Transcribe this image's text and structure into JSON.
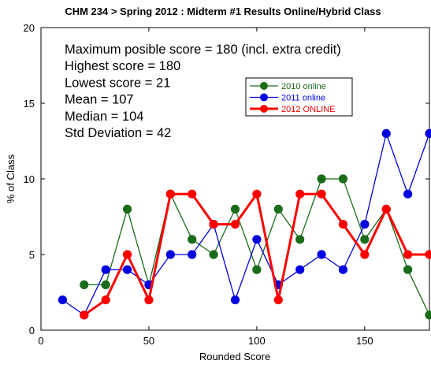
{
  "chart_data": {
    "type": "line",
    "title": "CHM 234 > Spring 2012 : Midterm #1 Results Online/Hybrid Class",
    "xlabel": "Rounded Score",
    "ylabel": "% of Class",
    "xlim": [
      0,
      180
    ],
    "ylim": [
      0,
      20
    ],
    "x_ticks": [
      0,
      50,
      100,
      150
    ],
    "y_ticks": [
      0,
      5,
      10,
      15,
      20
    ],
    "grid": false,
    "legend_position": "upper-center-right",
    "annotations": [
      "Maximum posible score = 180 (incl. extra credit)",
      "Highest score = 180",
      "Lowest score = 21",
      "Mean = 107",
      "Median = 104",
      "Std Deviation = 42"
    ],
    "series": [
      {
        "name": "2010 online",
        "color": "#1a6b1a",
        "line_width": "thin",
        "x": [
          20,
          30,
          40,
          50,
          60,
          70,
          80,
          90,
          100,
          110,
          120,
          130,
          140,
          150,
          160,
          170,
          180
        ],
        "y": [
          3,
          3,
          8,
          3,
          9,
          6,
          5,
          8,
          4,
          8,
          6,
          10,
          10,
          6,
          8,
          4,
          1
        ]
      },
      {
        "name": "2011 online",
        "color": "#0000e0",
        "line_width": "thin",
        "x": [
          10,
          20,
          30,
          40,
          50,
          60,
          70,
          80,
          90,
          100,
          110,
          120,
          130,
          140,
          150,
          160,
          170,
          180
        ],
        "y": [
          2,
          1,
          4,
          4,
          3,
          5,
          5,
          7,
          2,
          6,
          3,
          4,
          5,
          4,
          7,
          13,
          9,
          13
        ]
      },
      {
        "name": "2012 ONLINE",
        "color": "#ff0000",
        "line_width": "thick",
        "x": [
          20,
          30,
          40,
          50,
          60,
          70,
          80,
          90,
          100,
          110,
          120,
          130,
          140,
          150,
          160,
          170,
          180
        ],
        "y": [
          1,
          2,
          5,
          2,
          9,
          9,
          7,
          7,
          9,
          2,
          9,
          9,
          7,
          5,
          8,
          5,
          5
        ]
      }
    ]
  }
}
